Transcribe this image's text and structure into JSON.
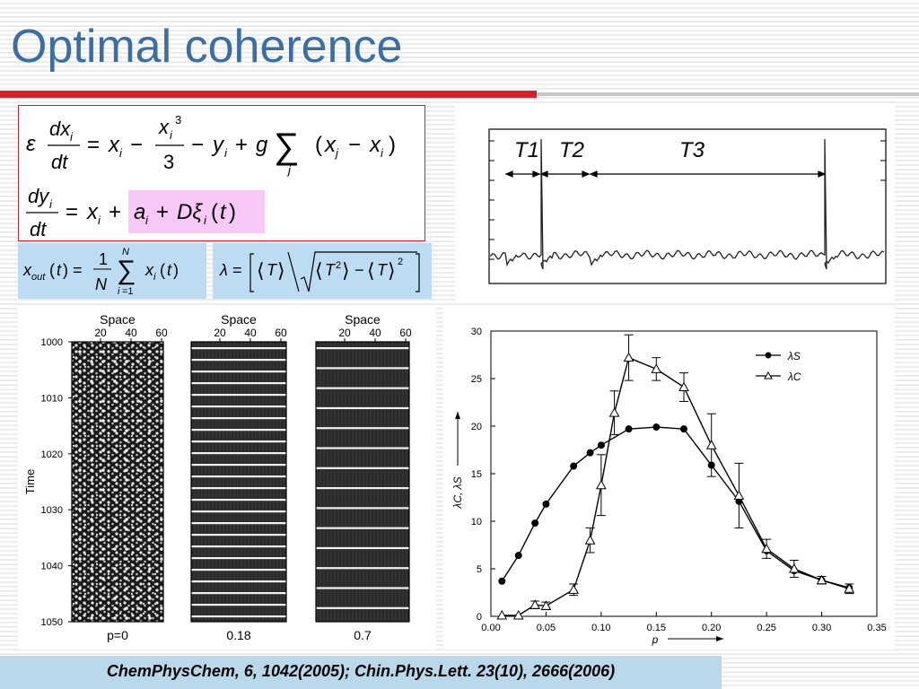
{
  "slide": {
    "title": "Optimal coherence",
    "citation": "ChemPhysChem, 6, 1042(2005); Chin.Phys.Lett. 23(10), 2666(2006)"
  },
  "equations": {
    "eq1": "ε dx_i/dt = x_i − x_i^3/3 − y_i + g Σ_j (x_j − x_i)",
    "eq2_left": "dy_i/dt = x_i +",
    "eq2_highlight": "a_i + Dξ_i(t)",
    "xout": "x_out(t) = (1/N) Σ_{i=1}^{N} x_i(t)",
    "lambda": "λ = ⟨T⟩ / √(⟨T²⟩ − ⟨T⟩²)"
  },
  "trace": {
    "labels": [
      "T1",
      "T2",
      "T3"
    ]
  },
  "spacetime": {
    "axis_title_x": "Space",
    "axis_title_y": "Time",
    "x_ticks": [
      "20",
      "40",
      "60"
    ],
    "y_ticks": [
      "1000",
      "1010",
      "1020",
      "1030",
      "1040",
      "1050"
    ],
    "panel_labels": [
      "p=0",
      "0.18",
      "0.7"
    ]
  },
  "colors": {
    "title": "#3a6ea5",
    "rule": "#d9202a",
    "formula_box": "#bcdcf3",
    "highlight": "#f8c8f8",
    "citation_bg": "#b9d9ea"
  },
  "chart_data": {
    "type": "line",
    "xlabel": "p",
    "ylabel": "λC, λS",
    "xlim": [
      0,
      0.35
    ],
    "ylim": [
      0,
      30
    ],
    "x_ticks": [
      "0.00",
      "0.05",
      "0.10",
      "0.15",
      "0.20",
      "0.25",
      "0.30",
      "0.35"
    ],
    "y_ticks": [
      "0",
      "5",
      "10",
      "15",
      "20",
      "25",
      "30"
    ],
    "legend_position": "top-right",
    "series": [
      {
        "name": "λS",
        "marker": "filled-circle",
        "x": [
          0.01,
          0.025,
          0.04,
          0.05,
          0.075,
          0.09,
          0.1,
          0.125,
          0.15,
          0.175,
          0.2,
          0.225,
          0.25,
          0.275,
          0.3,
          0.325
        ],
        "y": [
          3.7,
          6.4,
          9.8,
          11.8,
          15.8,
          17.2,
          18.0,
          19.7,
          19.9,
          19.7,
          15.9,
          12.1,
          6.9,
          4.8,
          3.8,
          3.0
        ]
      },
      {
        "name": "λC",
        "marker": "open-triangle",
        "x": [
          0.01,
          0.025,
          0.04,
          0.05,
          0.075,
          0.09,
          0.1,
          0.112,
          0.125,
          0.15,
          0.175,
          0.2,
          0.225,
          0.25,
          0.275,
          0.3,
          0.325
        ],
        "y": [
          0.1,
          0.1,
          1.2,
          1.1,
          2.8,
          8.0,
          13.8,
          21.4,
          27.2,
          26.0,
          24.1,
          18.0,
          12.7,
          7.1,
          5.0,
          3.8,
          2.9
        ],
        "yerr": [
          0,
          0,
          0.4,
          0.4,
          0.6,
          1.3,
          3.2,
          2.3,
          2.4,
          1.2,
          1.5,
          3.3,
          3.4,
          1.0,
          0.9,
          0.4,
          0.5
        ]
      }
    ]
  }
}
